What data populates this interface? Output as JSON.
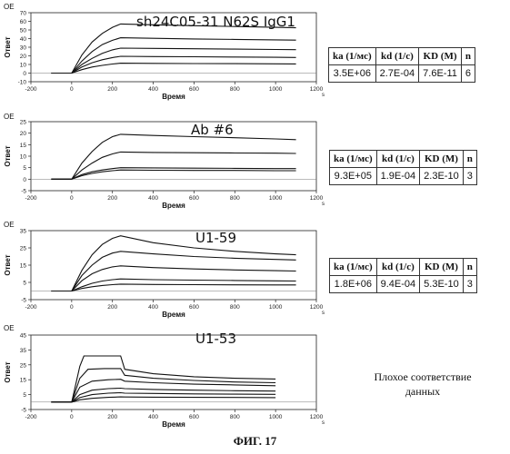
{
  "figure_label": "ФИГ. 17",
  "note": [
    "Плохое соответствие",
    "данных"
  ],
  "kin_headers": [
    "ka (1/мс)",
    "kd (1/c)",
    "KD (M)",
    "n"
  ],
  "chart_data": [
    {
      "type": "line",
      "oe_label": "ОЕ",
      "title": "sh24C05-31 N62S IgG1",
      "xlabel": "Время",
      "ylabel": "Ответ",
      "x_unit": "s",
      "xlim": [
        -200,
        1200
      ],
      "ylim": [
        -10,
        70
      ],
      "xticks": [
        -200,
        0,
        200,
        400,
        600,
        800,
        1000,
        1200
      ],
      "yticks": [
        -10,
        0,
        10,
        20,
        30,
        40,
        50,
        60,
        70
      ],
      "series": [
        {
          "values": [
            [
              -100,
              0
            ],
            [
              0,
              0
            ],
            [
              50,
              21
            ],
            [
              100,
              36
            ],
            [
              150,
              46
            ],
            [
              200,
              53
            ],
            [
              240,
              57
            ],
            [
              400,
              56
            ],
            [
              600,
              55
            ],
            [
              800,
              54
            ],
            [
              1000,
              53
            ],
            [
              1100,
              52.5
            ]
          ]
        },
        {
          "values": [
            [
              -100,
              0
            ],
            [
              0,
              0
            ],
            [
              50,
              14
            ],
            [
              100,
              25
            ],
            [
              150,
              33
            ],
            [
              200,
              38
            ],
            [
              240,
              41
            ],
            [
              400,
              40.3
            ],
            [
              600,
              39.6
            ],
            [
              800,
              39
            ],
            [
              1000,
              38.5
            ],
            [
              1100,
              38.2
            ]
          ]
        },
        {
          "values": [
            [
              -100,
              0
            ],
            [
              0,
              0
            ],
            [
              50,
              10
            ],
            [
              100,
              17
            ],
            [
              150,
              23
            ],
            [
              200,
              27
            ],
            [
              240,
              29
            ],
            [
              400,
              28.6
            ],
            [
              600,
              28.2
            ],
            [
              800,
              27.8
            ],
            [
              1000,
              27.4
            ],
            [
              1100,
              27.2
            ]
          ]
        },
        {
          "values": [
            [
              -100,
              0
            ],
            [
              0,
              0
            ],
            [
              50,
              7
            ],
            [
              100,
              12
            ],
            [
              150,
              15.5
            ],
            [
              200,
              18
            ],
            [
              240,
              19.5
            ],
            [
              400,
              19.2
            ],
            [
              600,
              18.9
            ],
            [
              800,
              18.6
            ],
            [
              1000,
              18.3
            ],
            [
              1100,
              18.1
            ]
          ]
        },
        {
          "values": [
            [
              -100,
              0
            ],
            [
              0,
              0
            ],
            [
              50,
              4
            ],
            [
              100,
              7
            ],
            [
              150,
              9
            ],
            [
              200,
              10.5
            ],
            [
              240,
              11.5
            ],
            [
              400,
              11.3
            ],
            [
              600,
              11.1
            ],
            [
              800,
              10.9
            ],
            [
              1000,
              10.7
            ],
            [
              1100,
              10.6
            ]
          ]
        }
      ],
      "kinetics": {
        "ka": "3.5E+06",
        "kd": "2.7E-04",
        "KD": "7.6E-11",
        "n": "6"
      }
    },
    {
      "type": "line",
      "oe_label": "ОЕ",
      "title": "Ab #6",
      "xlabel": "Время",
      "ylabel": "Ответ",
      "x_unit": "s",
      "xlim": [
        -200,
        1200
      ],
      "ylim": [
        -5,
        25
      ],
      "xticks": [
        -200,
        0,
        200,
        400,
        600,
        800,
        1000,
        1200
      ],
      "yticks": [
        -5,
        0,
        5,
        10,
        15,
        20,
        25
      ],
      "series": [
        {
          "values": [
            [
              -100,
              0
            ],
            [
              0,
              0
            ],
            [
              50,
              7
            ],
            [
              100,
              12
            ],
            [
              150,
              16
            ],
            [
              200,
              18.5
            ],
            [
              240,
              19.5
            ],
            [
              400,
              19
            ],
            [
              600,
              18.5
            ],
            [
              800,
              18
            ],
            [
              1000,
              17.5
            ],
            [
              1100,
              17.2
            ]
          ]
        },
        {
          "values": [
            [
              -100,
              0
            ],
            [
              0,
              0
            ],
            [
              50,
              4
            ],
            [
              100,
              7
            ],
            [
              150,
              9.5
            ],
            [
              200,
              11
            ],
            [
              240,
              11.8
            ],
            [
              400,
              11.6
            ],
            [
              600,
              11.5
            ],
            [
              800,
              11.4
            ],
            [
              1000,
              11.3
            ],
            [
              1100,
              11.2
            ]
          ]
        },
        {
          "values": [
            [
              -100,
              0
            ],
            [
              0,
              0
            ],
            [
              50,
              2
            ],
            [
              100,
              3.2
            ],
            [
              150,
              4
            ],
            [
              200,
              4.6
            ],
            [
              240,
              5
            ],
            [
              400,
              4.9
            ],
            [
              600,
              4.8
            ],
            [
              800,
              4.7
            ],
            [
              1000,
              4.6
            ],
            [
              1100,
              4.6
            ]
          ]
        },
        {
          "values": [
            [
              -100,
              0
            ],
            [
              0,
              0
            ],
            [
              50,
              1.5
            ],
            [
              100,
              2.5
            ],
            [
              150,
              3.2
            ],
            [
              200,
              3.7
            ],
            [
              240,
              4
            ],
            [
              400,
              3.9
            ],
            [
              600,
              3.8
            ],
            [
              800,
              3.8
            ],
            [
              1000,
              3.7
            ],
            [
              1100,
              3.7
            ]
          ]
        }
      ],
      "kinetics": {
        "ka": "9.3E+05",
        "kd": "1.9E-04",
        "KD": "2.3E-10",
        "n": "3"
      }
    },
    {
      "type": "line",
      "oe_label": "ОЕ",
      "title": "U1-59",
      "xlabel": "Время",
      "ylabel": "Ответ",
      "x_unit": "s",
      "xlim": [
        -200,
        1200
      ],
      "ylim": [
        -5,
        35
      ],
      "xticks": [
        -200,
        0,
        200,
        400,
        600,
        800,
        1000,
        1200
      ],
      "yticks": [
        -5,
        5,
        15,
        25,
        35
      ],
      "series": [
        {
          "values": [
            [
              -100,
              0
            ],
            [
              0,
              0
            ],
            [
              50,
              12
            ],
            [
              100,
              21
            ],
            [
              150,
              27
            ],
            [
              200,
              30.5
            ],
            [
              240,
              32
            ],
            [
              400,
              28
            ],
            [
              600,
              25
            ],
            [
              800,
              23
            ],
            [
              1000,
              21.5
            ],
            [
              1100,
              21
            ]
          ]
        },
        {
          "values": [
            [
              -100,
              0
            ],
            [
              0,
              0
            ],
            [
              50,
              9
            ],
            [
              100,
              15
            ],
            [
              150,
              19.5
            ],
            [
              200,
              22
            ],
            [
              240,
              23
            ],
            [
              400,
              21.5
            ],
            [
              600,
              20
            ],
            [
              800,
              19
            ],
            [
              1000,
              18.3
            ],
            [
              1100,
              18
            ]
          ]
        },
        {
          "values": [
            [
              -100,
              0
            ],
            [
              0,
              0
            ],
            [
              50,
              6
            ],
            [
              100,
              10
            ],
            [
              150,
              12.5
            ],
            [
              200,
              14
            ],
            [
              240,
              14.6
            ],
            [
              400,
              13.6
            ],
            [
              600,
              12.8
            ],
            [
              800,
              12.2
            ],
            [
              1000,
              11.8
            ],
            [
              1100,
              11.6
            ]
          ]
        },
        {
          "values": [
            [
              -100,
              0
            ],
            [
              0,
              0
            ],
            [
              50,
              2.5
            ],
            [
              100,
              4.5
            ],
            [
              150,
              5.8
            ],
            [
              200,
              6.6
            ],
            [
              240,
              7
            ],
            [
              400,
              6.6
            ],
            [
              600,
              6.3
            ],
            [
              800,
              6.1
            ],
            [
              1000,
              5.9
            ],
            [
              1100,
              5.8
            ]
          ]
        },
        {
          "values": [
            [
              -100,
              0
            ],
            [
              0,
              0
            ],
            [
              50,
              1.5
            ],
            [
              100,
              2.5
            ],
            [
              150,
              3.2
            ],
            [
              200,
              3.7
            ],
            [
              240,
              4
            ],
            [
              400,
              3.8
            ],
            [
              600,
              3.7
            ],
            [
              800,
              3.6
            ],
            [
              1000,
              3.5
            ],
            [
              1100,
              3.5
            ]
          ]
        }
      ],
      "kinetics": {
        "ka": "1.8E+06",
        "kd": "9.4E-04",
        "KD": "5.3E-10",
        "n": "3"
      }
    },
    {
      "type": "line",
      "oe_label": "ОЕ",
      "title": "U1-53",
      "xlabel": "Время",
      "ylabel": "Ответ",
      "x_unit": "s",
      "xlim": [
        -200,
        1200
      ],
      "ylim": [
        -5,
        45
      ],
      "xticks": [
        -200,
        0,
        200,
        400,
        600,
        800,
        1000,
        1200
      ],
      "yticks": [
        -5,
        5,
        15,
        25,
        35,
        45
      ],
      "series": [
        {
          "values": [
            [
              -100,
              0
            ],
            [
              0,
              0
            ],
            [
              40,
              24
            ],
            [
              60,
              31
            ],
            [
              150,
              31
            ],
            [
              240,
              31
            ],
            [
              260,
              22
            ],
            [
              400,
              19
            ],
            [
              600,
              17
            ],
            [
              800,
              16
            ],
            [
              1000,
              15.5
            ]
          ]
        },
        {
          "values": [
            [
              -100,
              0
            ],
            [
              0,
              0
            ],
            [
              40,
              16
            ],
            [
              80,
              22
            ],
            [
              160,
              22.5
            ],
            [
              240,
              22.5
            ],
            [
              260,
              18
            ],
            [
              400,
              16
            ],
            [
              600,
              14.5
            ],
            [
              800,
              13.5
            ],
            [
              1000,
              13
            ]
          ]
        },
        {
          "values": [
            [
              -100,
              0
            ],
            [
              0,
              0
            ],
            [
              40,
              10
            ],
            [
              100,
              14
            ],
            [
              180,
              15
            ],
            [
              240,
              15.3
            ],
            [
              260,
              14
            ],
            [
              400,
              13
            ],
            [
              600,
              12
            ],
            [
              800,
              11.5
            ],
            [
              1000,
              11
            ]
          ]
        },
        {
          "values": [
            [
              -100,
              0
            ],
            [
              0,
              0
            ],
            [
              40,
              5
            ],
            [
              100,
              8
            ],
            [
              180,
              9
            ],
            [
              240,
              9.3
            ],
            [
              260,
              9
            ],
            [
              400,
              8.5
            ],
            [
              600,
              8
            ],
            [
              800,
              7.6
            ],
            [
              1000,
              7.4
            ]
          ]
        },
        {
          "values": [
            [
              -100,
              0
            ],
            [
              0,
              0
            ],
            [
              40,
              3
            ],
            [
              100,
              5
            ],
            [
              180,
              6
            ],
            [
              240,
              6.3
            ],
            [
              260,
              6
            ],
            [
              400,
              5.8
            ],
            [
              600,
              5.5
            ],
            [
              800,
              5.3
            ],
            [
              1000,
              5.2
            ]
          ]
        },
        {
          "values": [
            [
              -100,
              0
            ],
            [
              0,
              0
            ],
            [
              40,
              1.5
            ],
            [
              100,
              2.5
            ],
            [
              180,
              3.2
            ],
            [
              240,
              3.5
            ],
            [
              260,
              3.4
            ],
            [
              400,
              3.3
            ],
            [
              600,
              3.2
            ],
            [
              800,
              3.1
            ],
            [
              1000,
              3
            ]
          ]
        }
      ],
      "kinetics": null
    }
  ]
}
